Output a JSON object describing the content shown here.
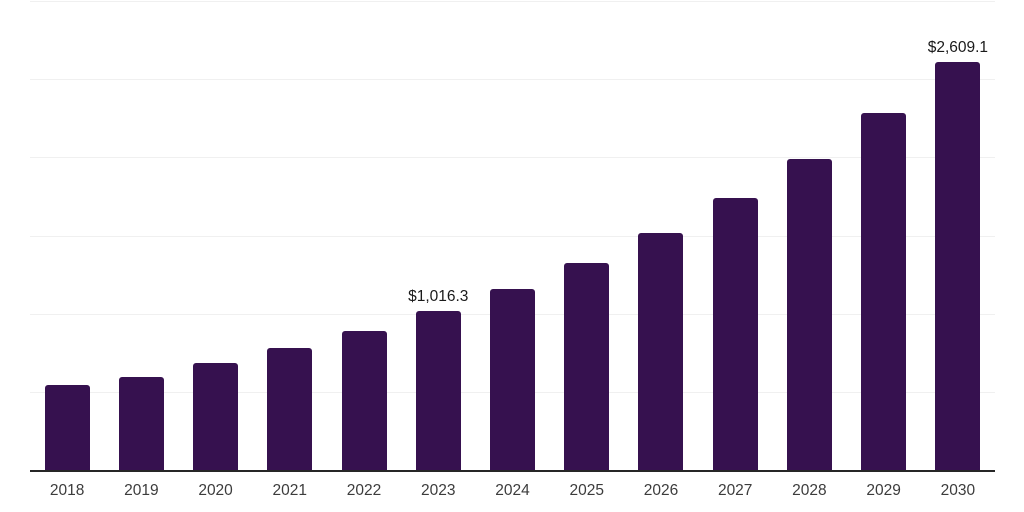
{
  "chart_data": {
    "type": "bar",
    "title": "",
    "xlabel": "",
    "ylabel": "",
    "categories": [
      "2018",
      "2019",
      "2020",
      "2021",
      "2022",
      "2023",
      "2024",
      "2025",
      "2026",
      "2027",
      "2028",
      "2029",
      "2030"
    ],
    "values": [
      547,
      598,
      687,
      778,
      892,
      1016.3,
      1155,
      1327,
      1519,
      1737,
      1992,
      2281,
      2609.1
    ],
    "data_labels": [
      "",
      "",
      "",
      "",
      "",
      "$1,016.3",
      "",
      "",
      "",
      "",
      "",
      "",
      "$2,609.1"
    ],
    "ylim": [
      0,
      3000
    ],
    "gridline_step": 500,
    "grid": true,
    "legend": "none",
    "bar_color": "#36114F",
    "axis_color": "#262626",
    "gridline_color": "#f0f0f0",
    "label_color": "#1a1a1a",
    "tick_label_color": "#3c3c3c"
  }
}
